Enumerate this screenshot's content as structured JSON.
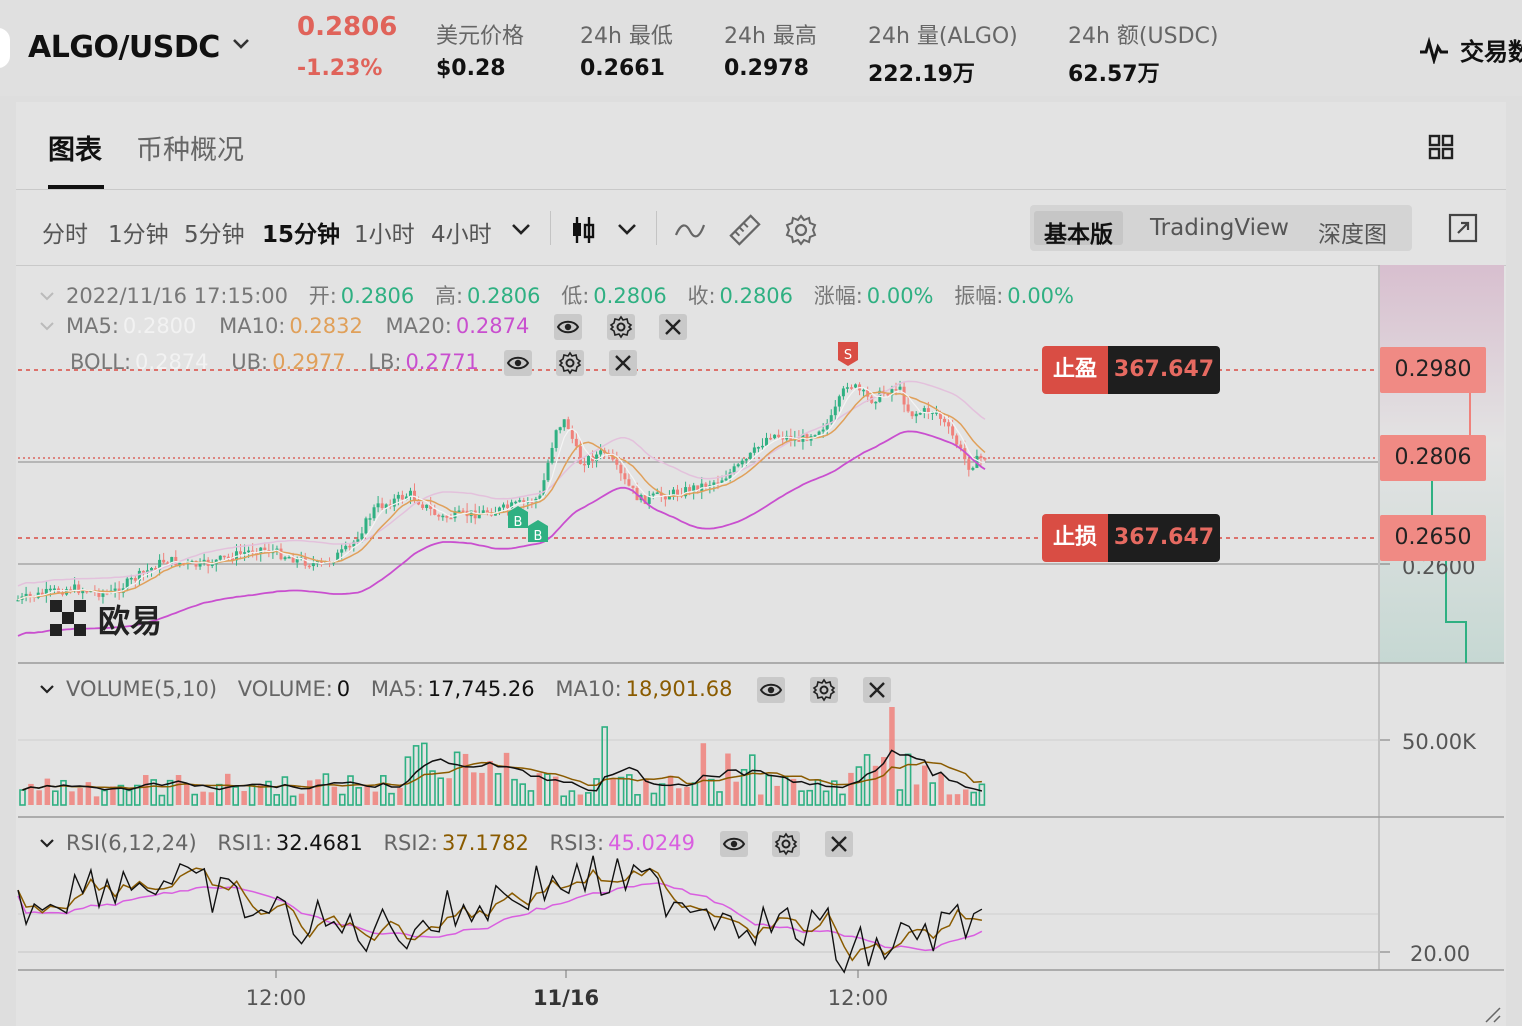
{
  "ticker": {
    "pair": "ALGO/USDC",
    "last_price": "0.2806",
    "change_pct": "-1.23%",
    "stats": [
      {
        "label": "美元价格",
        "value": "$0.28"
      },
      {
        "label": "24h 最低",
        "value": "0.2661"
      },
      {
        "label": "24h 最高",
        "value": "0.2978"
      },
      {
        "label": "24h 量(ALGO)",
        "value": "222.19万"
      },
      {
        "label": "24h 额(USDC)",
        "value": "62.57万"
      }
    ],
    "trade_label": "交易数"
  },
  "tabs": [
    "图表",
    "币种概况"
  ],
  "timeframes": [
    "分时",
    "1分钟",
    "5分钟",
    "15分钟",
    "1小时",
    "4小时"
  ],
  "active_timeframe": "15分钟",
  "views": [
    "基本版",
    "TradingView",
    "深度图"
  ],
  "active_view": "基本版",
  "ohlc_row": {
    "datetime": "2022/11/16 17:15:00",
    "open_label": "开:",
    "open": "0.2806",
    "high_label": "高:",
    "high": "0.2806",
    "low_label": "低:",
    "low": "0.2806",
    "close_label": "收:",
    "close": "0.2806",
    "chg_label": "涨幅:",
    "chg": "0.00%",
    "amp_label": "振幅:",
    "amp": "0.00%"
  },
  "ma_row": {
    "ma5_label": "MA5:",
    "ma5": "0.2800",
    "ma10_label": "MA10:",
    "ma10": "0.2832",
    "ma20_label": "MA20:",
    "ma20": "0.2874"
  },
  "boll_row": {
    "boll_label": "BOLL:",
    "boll": "0.2874",
    "ub_label": "UB:",
    "ub": "0.2977",
    "lb_label": "LB:",
    "lb": "0.2771"
  },
  "volume_row": {
    "title": "VOLUME(5,10)",
    "vol_label": "VOLUME:",
    "vol": "0",
    "ma5_label": "MA5:",
    "ma5": "17,745.26",
    "ma10_label": "MA10:",
    "ma10": "18,901.68"
  },
  "rsi_row": {
    "title": "RSI(6,12,24)",
    "rsi1_label": "RSI1:",
    "rsi1": "32.4681",
    "rsi2_label": "RSI2:",
    "rsi2": "37.1782",
    "rsi3_label": "RSI3:",
    "rsi3": "45.0249"
  },
  "price_axis": {
    "tag_high": "0.2980",
    "tag_last": "0.2806",
    "tag_low": "0.2650",
    "tick_0_26": "0.2600",
    "vol_tick": "50.00K",
    "rsi_tick": "20.00"
  },
  "orders": [
    {
      "label": "止盈",
      "value": "367.647"
    },
    {
      "label": "止损",
      "value": "367.647"
    }
  ],
  "markers": {
    "sell": "S",
    "buy": "B"
  },
  "time_axis": [
    "12:00",
    "11/16",
    "12:00"
  ],
  "watermark": "欧易",
  "colors": {
    "up": "#2fb082",
    "down": "#f0817b",
    "ma10": "#e0a05a",
    "ma20_lb": "#c94fcf",
    "ub": "#e3c1dc",
    "volma10": "#8a5b00",
    "rsi3": "#d95fe0"
  },
  "chart_data": {
    "type": "line",
    "price_ylim": [
      0.255,
      0.3
    ],
    "series": [
      {
        "name": "MA5",
        "values": [
          0.28
        ]
      },
      {
        "name": "MA10",
        "values": [
          0.2832
        ]
      },
      {
        "name": "MA20",
        "values": [
          0.2874
        ]
      }
    ]
  }
}
